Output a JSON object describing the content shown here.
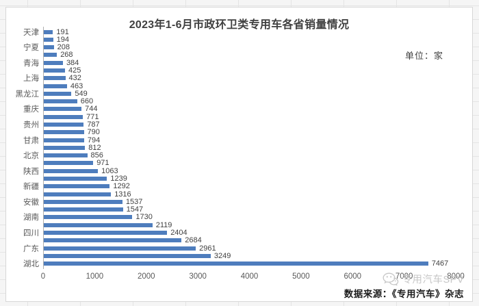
{
  "chart_data": {
    "type": "bar",
    "orientation": "horizontal",
    "title": "2023年1-6月市政环卫类专用车各省销量情况",
    "unit_label": "单位：家",
    "bars": [
      {
        "label": "天津",
        "value": 191
      },
      {
        "label": "",
        "value": 194
      },
      {
        "label": "宁夏",
        "value": 208
      },
      {
        "label": "",
        "value": 268
      },
      {
        "label": "青海",
        "value": 384
      },
      {
        "label": "",
        "value": 425
      },
      {
        "label": "上海",
        "value": 432
      },
      {
        "label": "",
        "value": 463
      },
      {
        "label": "黑龙江",
        "value": 549
      },
      {
        "label": "",
        "value": 660
      },
      {
        "label": "重庆",
        "value": 744
      },
      {
        "label": "",
        "value": 771
      },
      {
        "label": "贵州",
        "value": 787
      },
      {
        "label": "",
        "value": 790
      },
      {
        "label": "甘肃",
        "value": 794
      },
      {
        "label": "",
        "value": 812
      },
      {
        "label": "北京",
        "value": 856
      },
      {
        "label": "",
        "value": 971
      },
      {
        "label": "陕西",
        "value": 1063
      },
      {
        "label": "",
        "value": 1239
      },
      {
        "label": "新疆",
        "value": 1292
      },
      {
        "label": "",
        "value": 1316
      },
      {
        "label": "安徽",
        "value": 1537
      },
      {
        "label": "",
        "value": 1547
      },
      {
        "label": "湖南",
        "value": 1730
      },
      {
        "label": "",
        "value": 2119
      },
      {
        "label": "四川",
        "value": 2404
      },
      {
        "label": "",
        "value": 2684
      },
      {
        "label": "广东",
        "value": 2961
      },
      {
        "label": "",
        "value": 3249
      },
      {
        "label": "湖北",
        "value": 7467
      }
    ],
    "xlim": [
      0,
      8000
    ],
    "x_ticks": [
      0,
      1000,
      2000,
      3000,
      4000,
      5000,
      6000,
      7000,
      8000
    ],
    "grid": false,
    "legend": "none",
    "colors": {
      "bar": "#4e7dbd",
      "title_text": "#3f3f3f",
      "axis_text": "#595959",
      "value_text": "#3f3f3f",
      "watermark_text": "#c7c7c7",
      "source_text": "#1c1c1c"
    }
  },
  "footer": {
    "watermark": "专用汽车SPV",
    "watermark_icon": "wechat-icon",
    "source": "数据来源：《专用汽车》杂志"
  }
}
